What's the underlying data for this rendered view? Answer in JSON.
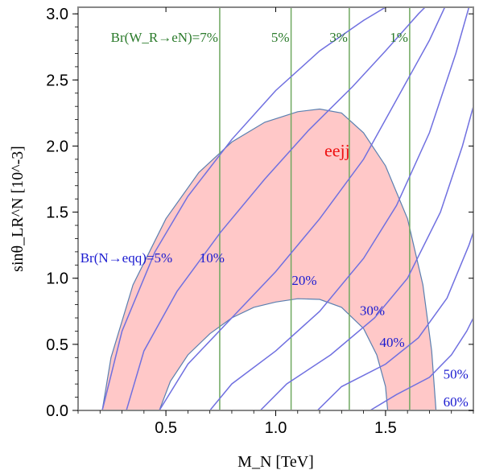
{
  "chart_data": {
    "type": "line",
    "title": "",
    "xlabel": "M_N [TeV]",
    "ylabel": "sinθ_LR^N [10^-3]",
    "xlim": [
      0.1,
      1.9
    ],
    "ylim": [
      0,
      3.05
    ],
    "x_ticks": [
      "0.5",
      "1.0",
      "1.5"
    ],
    "x_tick_values": [
      0.5,
      1.0,
      1.5
    ],
    "y_ticks": [
      "0.0",
      "0.5",
      "1.0",
      "1.5",
      "2.0",
      "2.5",
      "3.0"
    ],
    "y_tick_values": [
      0,
      0.5,
      1.0,
      1.5,
      2.0,
      2.5,
      3.0
    ],
    "grid": false,
    "colors": {
      "region_fill": "#ffc8c8",
      "region_edge": "#5a7fb0",
      "br_eN_line": "#6fa860",
      "br_eqq_line": "#7070e0",
      "frame": "#888888"
    },
    "region": {
      "label": "eejj",
      "outer": [
        [
          0.21,
          0
        ],
        [
          0.25,
          0.4
        ],
        [
          0.35,
          0.95
        ],
        [
          0.5,
          1.45
        ],
        [
          0.65,
          1.8
        ],
        [
          0.8,
          2.03
        ],
        [
          0.95,
          2.18
        ],
        [
          1.1,
          2.26
        ],
        [
          1.2,
          2.28
        ],
        [
          1.3,
          2.25
        ],
        [
          1.4,
          2.1
        ],
        [
          1.5,
          1.85
        ],
        [
          1.6,
          1.45
        ],
        [
          1.67,
          0.95
        ],
        [
          1.71,
          0.45
        ],
        [
          1.73,
          0
        ]
      ],
      "inner": [
        [
          0.47,
          0
        ],
        [
          0.52,
          0.22
        ],
        [
          0.6,
          0.42
        ],
        [
          0.7,
          0.58
        ],
        [
          0.8,
          0.7
        ],
        [
          0.9,
          0.78
        ],
        [
          1.0,
          0.82
        ],
        [
          1.1,
          0.845
        ],
        [
          1.2,
          0.84
        ],
        [
          1.3,
          0.78
        ],
        [
          1.4,
          0.62
        ],
        [
          1.46,
          0.42
        ],
        [
          1.5,
          0.18
        ],
        [
          1.51,
          0
        ]
      ]
    },
    "br_eN_lines": [
      {
        "x": 0.745,
        "label": "Br(W_R→eN)=7%"
      },
      {
        "x": 1.07,
        "label": "5%"
      },
      {
        "x": 1.335,
        "label": "3%"
      },
      {
        "x": 1.61,
        "label": "1%"
      }
    ],
    "br_eqq_series": [
      {
        "name": "Br(N→eqq)=5%",
        "points": [
          [
            0.21,
            0
          ],
          [
            0.3,
            0.6
          ],
          [
            0.45,
            1.2
          ],
          [
            0.6,
            1.62
          ],
          [
            0.8,
            2.05
          ],
          [
            1.0,
            2.42
          ],
          [
            1.2,
            2.72
          ],
          [
            1.4,
            2.95
          ],
          [
            1.5,
            3.05
          ]
        ]
      },
      {
        "name": "10%",
        "points": [
          [
            0.32,
            0
          ],
          [
            0.4,
            0.45
          ],
          [
            0.55,
            0.9
          ],
          [
            0.75,
            1.35
          ],
          [
            0.95,
            1.75
          ],
          [
            1.15,
            2.12
          ],
          [
            1.35,
            2.45
          ],
          [
            1.5,
            2.72
          ],
          [
            1.65,
            3.0
          ],
          [
            1.68,
            3.05
          ]
        ]
      },
      {
        "name": "20%",
        "points": [
          [
            0.47,
            0
          ],
          [
            0.6,
            0.35
          ],
          [
            0.8,
            0.7
          ],
          [
            1.0,
            1.05
          ],
          [
            1.2,
            1.45
          ],
          [
            1.4,
            1.9
          ],
          [
            1.55,
            2.35
          ],
          [
            1.7,
            2.8
          ],
          [
            1.77,
            3.05
          ]
        ]
      },
      {
        "name": "30%",
        "points": [
          [
            0.7,
            0
          ],
          [
            0.8,
            0.2
          ],
          [
            1.0,
            0.45
          ],
          [
            1.2,
            0.75
          ],
          [
            1.4,
            1.15
          ],
          [
            1.55,
            1.55
          ],
          [
            1.7,
            2.1
          ],
          [
            1.82,
            2.7
          ],
          [
            1.88,
            3.05
          ]
        ]
      },
      {
        "name": "40%",
        "points": [
          [
            0.93,
            0
          ],
          [
            1.05,
            0.2
          ],
          [
            1.25,
            0.42
          ],
          [
            1.45,
            0.7
          ],
          [
            1.6,
            1.0
          ],
          [
            1.75,
            1.5
          ],
          [
            1.85,
            2.0
          ],
          [
            1.9,
            2.3
          ]
        ]
      },
      {
        "name": "50%",
        "points": [
          [
            1.19,
            0
          ],
          [
            1.3,
            0.18
          ],
          [
            1.5,
            0.35
          ],
          [
            1.65,
            0.55
          ],
          [
            1.78,
            0.85
          ],
          [
            1.88,
            1.25
          ],
          [
            1.9,
            1.35
          ]
        ]
      },
      {
        "name": "60%",
        "points": [
          [
            1.43,
            0
          ],
          [
            1.55,
            0.12
          ],
          [
            1.7,
            0.25
          ],
          [
            1.8,
            0.42
          ],
          [
            1.87,
            0.6
          ],
          [
            1.9,
            0.7
          ]
        ]
      }
    ],
    "annotations": [
      {
        "text": "eejj",
        "x": 1.28,
        "y": 1.92,
        "color": "red"
      },
      {
        "text": "Br(N→eqq)=5%",
        "x": 0.11,
        "y": 1.12,
        "color": "blue",
        "anchor": "start"
      },
      {
        "text": "10%",
        "x": 0.71,
        "y": 1.12,
        "color": "blue"
      },
      {
        "text": "20%",
        "x": 1.13,
        "y": 0.95,
        "color": "blue"
      },
      {
        "text": "30%",
        "x": 1.44,
        "y": 0.72,
        "color": "blue"
      },
      {
        "text": "40%",
        "x": 1.53,
        "y": 0.48,
        "color": "blue"
      },
      {
        "text": "50%",
        "x": 1.82,
        "y": 0.24,
        "color": "blue"
      },
      {
        "text": "60%",
        "x": 1.82,
        "y": 0.03,
        "color": "blue"
      }
    ]
  }
}
